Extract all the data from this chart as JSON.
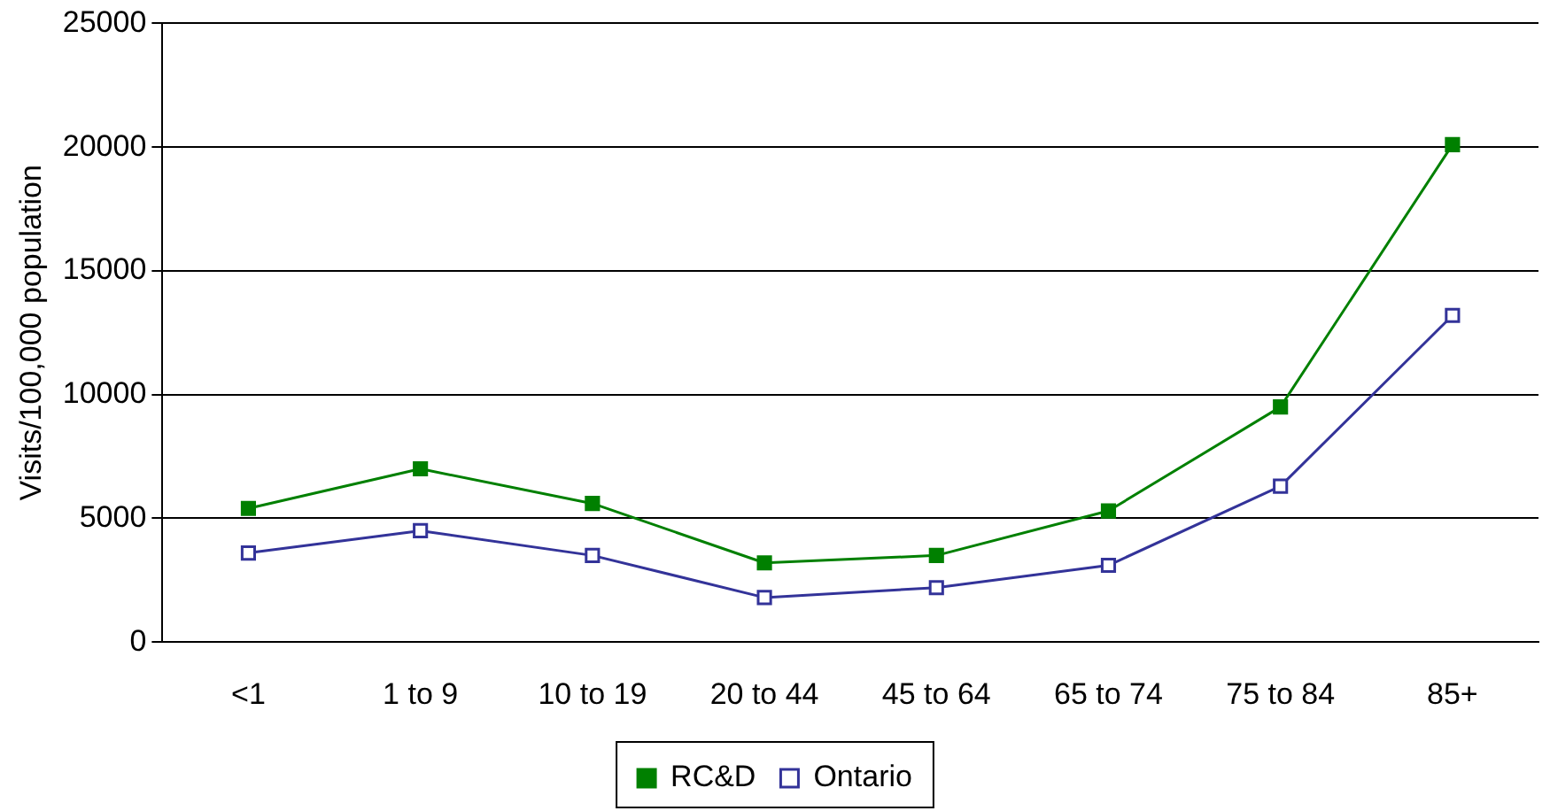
{
  "chart_data": {
    "type": "line",
    "ylabel": "Visits/100,000 population",
    "categories": [
      "<1",
      "1 to 9",
      "10 to 19",
      "20 to 44",
      "45 to 64",
      "65 to 74",
      "75 to 84",
      "85+"
    ],
    "series": [
      {
        "name": "RC&D",
        "color": "#008000",
        "marker": "square",
        "values": [
          5400,
          7000,
          5600,
          3200,
          3500,
          5300,
          9500,
          20100
        ]
      },
      {
        "name": "Ontario",
        "color": "#333399",
        "marker": "square",
        "values": [
          3600,
          4500,
          3500,
          1800,
          2200,
          3100,
          6300,
          13200
        ]
      }
    ],
    "ylim": [
      0,
      25000
    ],
    "yticks": [
      0,
      5000,
      10000,
      15000,
      20000,
      25000
    ],
    "grid": "y",
    "legend": "bottom"
  }
}
